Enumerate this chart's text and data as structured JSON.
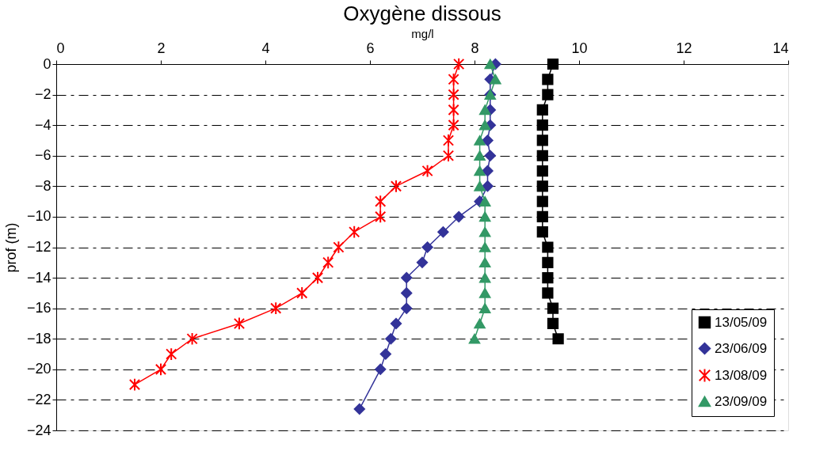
{
  "chart_data": {
    "type": "line",
    "title": "Oxygène dissous",
    "xlabel": "mg/l",
    "ylabel": "prof (m)",
    "xlim": [
      0,
      14
    ],
    "xticks": [
      0,
      2,
      4,
      6,
      8,
      10,
      12,
      14
    ],
    "ylim": [
      -24,
      0
    ],
    "yticks": [
      0,
      -2,
      -4,
      -6,
      -8,
      -10,
      -12,
      -14,
      -16,
      -18,
      -20,
      -22,
      -24
    ],
    "grid": "y",
    "legend": "bottom right",
    "series": [
      {
        "name": "13/05/09",
        "color": "#000000",
        "marker": "square",
        "x": [
          9.5,
          9.4,
          9.4,
          9.3,
          9.3,
          9.3,
          9.3,
          9.3,
          9.3,
          9.3,
          9.3,
          9.3,
          9.4,
          9.4,
          9.4,
          9.4,
          9.5,
          9.5,
          9.6
        ],
        "values": [
          0,
          -1,
          -2,
          -3,
          -4,
          -5,
          -6,
          -7,
          -8,
          -9,
          -10,
          -11,
          -12,
          -13,
          -14,
          -15,
          -16,
          -17,
          -18
        ]
      },
      {
        "name": "23/06/09",
        "color": "#333399",
        "marker": "diamond",
        "x": [
          8.4,
          8.3,
          8.3,
          8.3,
          8.3,
          8.25,
          8.3,
          8.25,
          8.25,
          8.1,
          7.7,
          7.4,
          7.1,
          7.0,
          6.7,
          6.7,
          6.7,
          6.5,
          6.4,
          6.3,
          6.2,
          5.8
        ],
        "values": [
          0,
          -1,
          -2,
          -3,
          -4,
          -5,
          -6,
          -7,
          -8,
          -9,
          -10,
          -11,
          -12,
          -13,
          -14,
          -15,
          -16,
          -17,
          -18,
          -19,
          -20,
          -22.6
        ]
      },
      {
        "name": "13/08/09",
        "color": "#ff0000",
        "marker": "cross",
        "x": [
          7.7,
          7.6,
          7.6,
          7.6,
          7.6,
          7.5,
          7.5,
          7.1,
          6.5,
          6.2,
          6.2,
          5.7,
          5.4,
          5.2,
          5.0,
          4.7,
          4.2,
          3.5,
          2.6,
          2.2,
          2.0,
          1.5
        ],
        "values": [
          0,
          -1,
          -2,
          -3,
          -4,
          -5,
          -6,
          -7,
          -8,
          -9,
          -10,
          -11,
          -12,
          -13,
          -14,
          -15,
          -16,
          -17,
          -18,
          -19,
          -20,
          -21
        ]
      },
      {
        "name": "23/09/09",
        "color": "#339966",
        "marker": "triangle",
        "x": [
          8.3,
          8.4,
          8.3,
          8.2,
          8.2,
          8.1,
          8.1,
          8.1,
          8.1,
          8.2,
          8.2,
          8.2,
          8.2,
          8.2,
          8.2,
          8.2,
          8.2,
          8.1,
          8.0
        ],
        "values": [
          0,
          -1,
          -2,
          -3,
          -4,
          -5,
          -6,
          -7,
          -8,
          -9,
          -10,
          -11,
          -12,
          -13,
          -14,
          -15,
          -16,
          -17,
          -18
        ]
      }
    ]
  }
}
